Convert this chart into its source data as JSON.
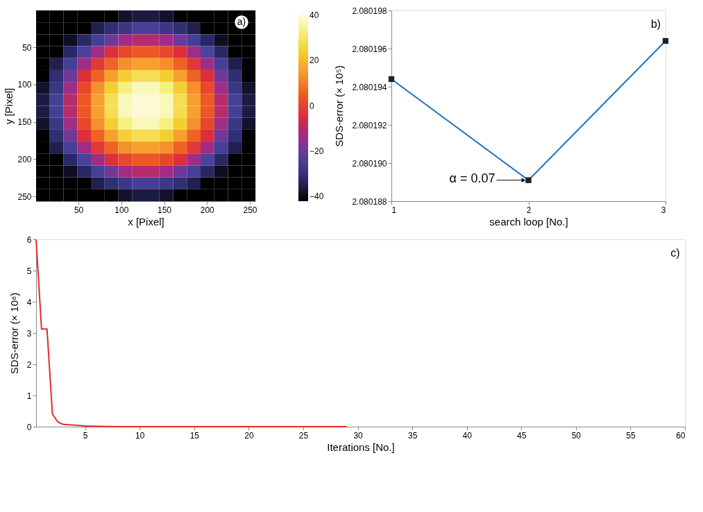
{
  "chart_data": [
    {
      "type": "heatmap",
      "xlabel": "x [Pixel]",
      "ylabel": "y [Pixel]",
      "annotations": [
        "a)"
      ],
      "x": [
        8.5,
        24.5,
        40.5,
        56.5,
        72.5,
        88.5,
        104.5,
        120.5,
        136.5,
        152.5,
        168.5,
        184.5,
        200.5,
        216.5,
        232.5,
        248.5
      ],
      "y": [
        8.5,
        24.5,
        40.5,
        56.5,
        72.5,
        88.5,
        104.5,
        120.5,
        136.5,
        152.5,
        168.5,
        184.5,
        200.5,
        216.5,
        232.5,
        248.5
      ],
      "xlim": [
        0.5,
        256.5
      ],
      "ylim": [
        256.5,
        0.5
      ],
      "xticks": [
        50,
        100,
        150,
        200,
        250
      ],
      "yticks": [
        50,
        100,
        150,
        200,
        250
      ],
      "clim": [
        -42,
        42
      ],
      "cticks": [
        -40,
        -20,
        0,
        20,
        40
      ],
      "cells": [
        [
          -42,
          -42,
          -42,
          -42,
          -42,
          -42,
          -38,
          -36,
          -36,
          -38,
          -42,
          -42,
          -42,
          -42,
          -42,
          -42
        ],
        [
          -42,
          -42,
          -42,
          -42,
          -35,
          -31,
          -28,
          -25,
          -25,
          -28,
          -31,
          -35,
          -42,
          -42,
          -42,
          -42
        ],
        [
          -42,
          -42,
          -39,
          -33,
          -25,
          -19,
          -13,
          -10,
          -10,
          -13,
          -19,
          -25,
          -33,
          -39,
          -42,
          -42
        ],
        [
          -42,
          -42,
          -33,
          -24,
          -13,
          -4,
          1,
          4,
          4,
          1,
          -4,
          -13,
          -24,
          -33,
          -42,
          -42
        ],
        [
          -42,
          -35,
          -25,
          -13,
          -2,
          6,
          13,
          16,
          16,
          13,
          6,
          -2,
          -13,
          -25,
          -35,
          -42
        ],
        [
          -42,
          -31,
          -19,
          -4,
          6,
          16,
          24,
          28,
          28,
          24,
          16,
          6,
          -4,
          -19,
          -31,
          -42
        ],
        [
          -38,
          -28,
          -13,
          1,
          13,
          24,
          33,
          37,
          37,
          33,
          24,
          13,
          1,
          -13,
          -28,
          -38
        ],
        [
          -36,
          -25,
          -10,
          4,
          16,
          28,
          37,
          39,
          39,
          37,
          28,
          16,
          4,
          -10,
          -25,
          -36
        ],
        [
          -36,
          -25,
          -10,
          4,
          16,
          28,
          37,
          39,
          39,
          37,
          28,
          16,
          4,
          -10,
          -25,
          -36
        ],
        [
          -38,
          -28,
          -13,
          1,
          13,
          24,
          33,
          37,
          37,
          33,
          24,
          13,
          1,
          -13,
          -28,
          -38
        ],
        [
          -42,
          -31,
          -19,
          -4,
          6,
          16,
          24,
          28,
          28,
          24,
          16,
          6,
          -4,
          -19,
          -31,
          -42
        ],
        [
          -42,
          -35,
          -25,
          -13,
          -2,
          6,
          13,
          16,
          16,
          13,
          6,
          -2,
          -13,
          -25,
          -35,
          -42
        ],
        [
          -42,
          -42,
          -33,
          -24,
          -13,
          -4,
          1,
          4,
          4,
          1,
          -4,
          -13,
          -24,
          -33,
          -42,
          -42
        ],
        [
          -42,
          -42,
          -39,
          -33,
          -25,
          -19,
          -13,
          -10,
          -10,
          -13,
          -19,
          -25,
          -33,
          -39,
          -42,
          -42
        ],
        [
          -42,
          -42,
          -42,
          -42,
          -35,
          -31,
          -28,
          -25,
          -25,
          -28,
          -31,
          -35,
          -42,
          -42,
          -42,
          -42
        ],
        [
          -42,
          -42,
          -42,
          -42,
          -42,
          -42,
          -38,
          -36,
          -36,
          -38,
          -42,
          -42,
          -42,
          -42,
          -42,
          -42
        ]
      ]
    },
    {
      "type": "line",
      "xlabel": "search loop [No.]",
      "ylabel": "SDS-error (× 10⁵)",
      "marker": "square",
      "annotations": [
        {
          "text": "α = 0.07",
          "x": 2,
          "y": 2.0801891
        },
        "b)"
      ],
      "x": [
        1,
        2,
        3
      ],
      "xlim": [
        1,
        3
      ],
      "xticks": [
        1,
        2,
        3
      ],
      "ylim": [
        2.080188,
        2.080198
      ],
      "yticks": [
        {
          "value": 2.080188,
          "label": "2.080188"
        },
        {
          "value": 2.08019,
          "label": "2.080190"
        },
        {
          "value": 2.080192,
          "label": "2.080192"
        },
        {
          "value": 2.080194,
          "label": "2.080194"
        },
        {
          "value": 2.080196,
          "label": "2.080196"
        },
        {
          "value": 2.080198,
          "label": "2.080198"
        }
      ],
      "series": [
        {
          "color": "#1f6fbf",
          "values": [
            2.0801944,
            2.0801891,
            2.0801964
          ]
        }
      ]
    },
    {
      "type": "line",
      "xlabel": "Iterations [No.]",
      "ylabel": "SDS-error (× 10⁸)",
      "annotations": [
        "c)"
      ],
      "x": [
        0.5,
        1,
        1.5,
        2,
        2.5,
        3,
        4,
        5,
        6,
        8,
        29
      ],
      "xlim": [
        0.5,
        60
      ],
      "xticks": [
        5,
        10,
        15,
        20,
        25,
        30,
        35,
        40,
        45,
        50,
        55,
        60
      ],
      "ylim": [
        0,
        6
      ],
      "yticks": [
        0,
        1,
        2,
        3,
        4,
        5,
        6
      ],
      "series": [
        {
          "color": "#e8282a",
          "values": [
            6.0,
            3.13,
            3.13,
            0.4,
            0.15,
            0.07,
            0.05,
            0.02,
            0.01,
            0,
            0
          ]
        }
      ]
    }
  ]
}
